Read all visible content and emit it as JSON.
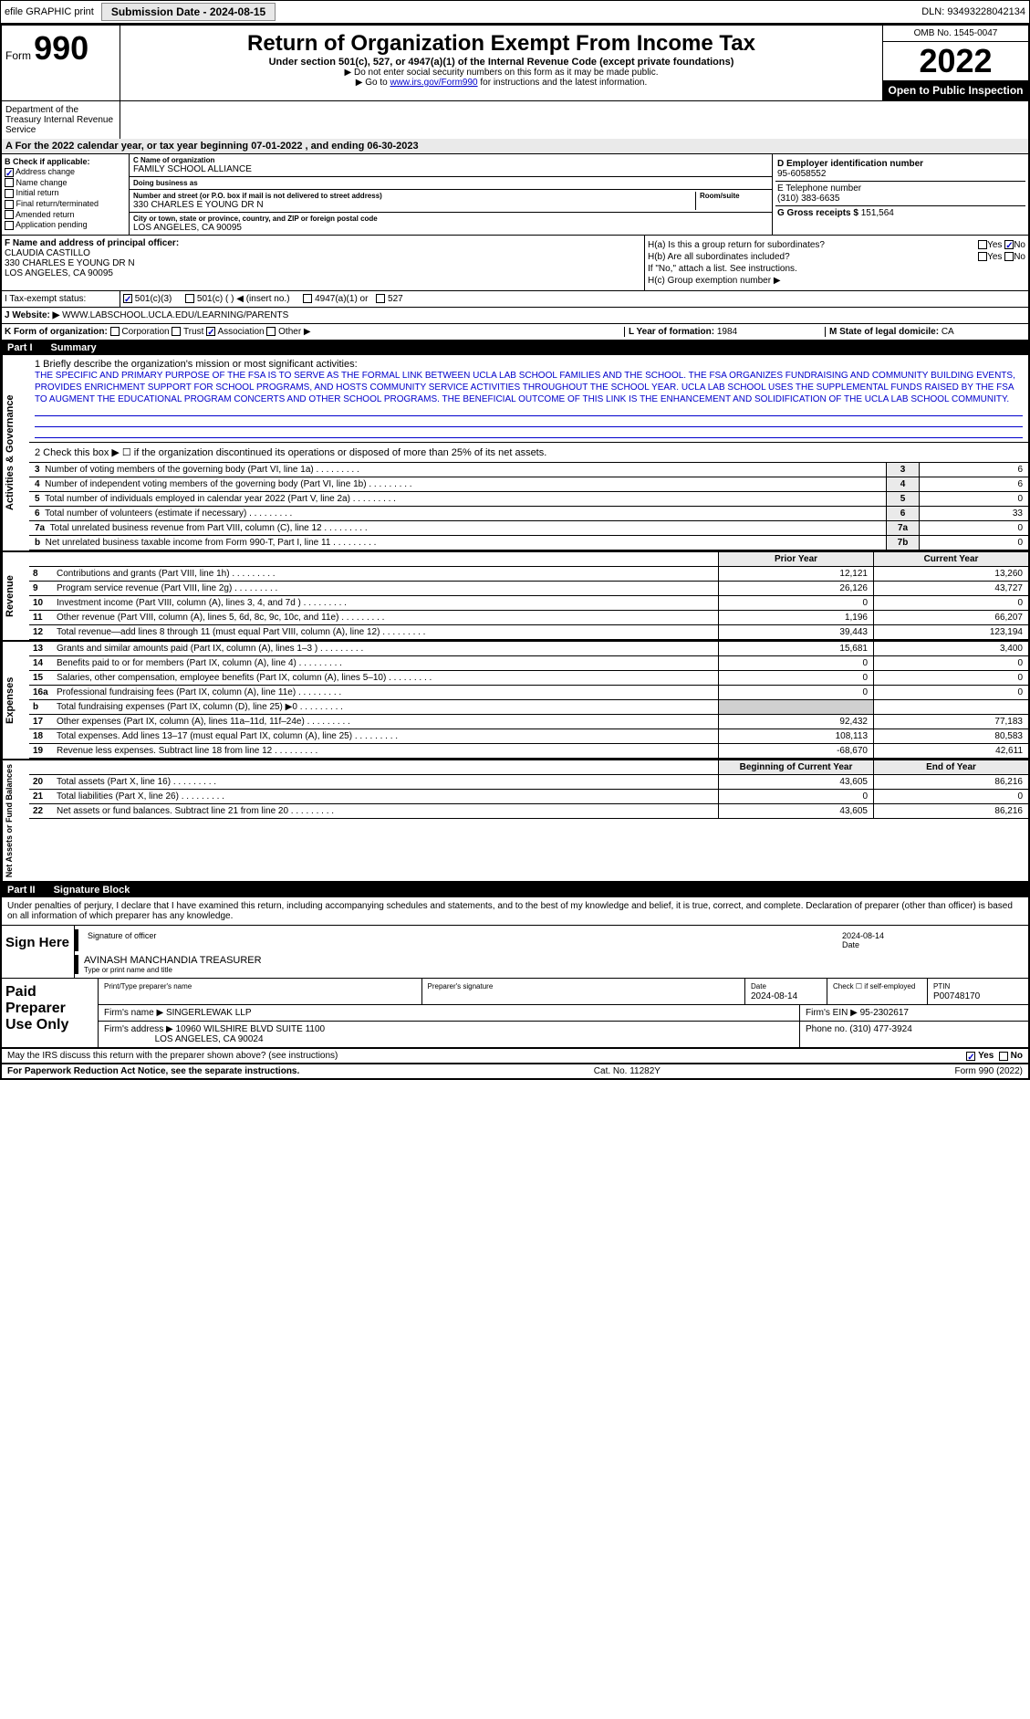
{
  "topbar": {
    "efile": "efile GRAPHIC print",
    "submission": "Submission Date - 2024-08-15",
    "dln": "DLN: 93493228042134"
  },
  "header": {
    "form_label": "Form",
    "form_number": "990",
    "title": "Return of Organization Exempt From Income Tax",
    "subtitle": "Under section 501(c), 527, or 4947(a)(1) of the Internal Revenue Code (except private foundations)",
    "note1": "▶ Do not enter social security numbers on this form as it may be made public.",
    "note2_pre": "▶ Go to ",
    "note2_link": "www.irs.gov/Form990",
    "note2_post": " for instructions and the latest information.",
    "omb": "OMB No. 1545-0047",
    "year": "2022",
    "inspect": "Open to Public Inspection",
    "dept": "Department of the Treasury Internal Revenue Service"
  },
  "period": "A For the 2022 calendar year, or tax year beginning 07-01-2022   , and ending 06-30-2023",
  "section_b": {
    "title": "B Check if applicable:",
    "items": [
      "Address change",
      "Name change",
      "Initial return",
      "Final return/terminated",
      "Amended return",
      "Application pending"
    ],
    "checked_index": 0
  },
  "section_c": {
    "name_label": "C Name of organization",
    "name": "FAMILY SCHOOL ALLIANCE",
    "dba_label": "Doing business as",
    "dba": "",
    "addr_label": "Number and street (or P.O. box if mail is not delivered to street address)",
    "room_label": "Room/suite",
    "addr": "330 CHARLES E YOUNG DR N",
    "city_label": "City or town, state or province, country, and ZIP or foreign postal code",
    "city": "LOS ANGELES, CA  90095"
  },
  "section_d": {
    "ein_label": "D Employer identification number",
    "ein": "95-6058552",
    "tel_label": "E Telephone number",
    "tel": "(310) 383-6635",
    "gross_label": "G Gross receipts $",
    "gross": "151,564"
  },
  "section_f": {
    "label": "F  Name and address of principal officer:",
    "name": "CLAUDIA CASTILLO",
    "addr1": "330 CHARLES E YOUNG DR N",
    "addr2": "LOS ANGELES, CA  90095"
  },
  "section_h": {
    "ha": "H(a)  Is this a group return for subordinates?",
    "ha_yes": "Yes",
    "ha_no": "No",
    "hb": "H(b)  Are all subordinates included?",
    "hb_note": "If \"No,\" attach a list. See instructions.",
    "hc": "H(c)  Group exemption number ▶"
  },
  "section_i": {
    "label": "I    Tax-exempt status:",
    "opts": [
      "501(c)(3)",
      "501(c) (  ) ◀ (insert no.)",
      "4947(a)(1) or",
      "527"
    ]
  },
  "section_j": {
    "label": "J   Website: ▶",
    "value": "WWW.LABSCHOOL.UCLA.EDU/LEARNING/PARENTS"
  },
  "section_k": {
    "label": "K Form of organization:",
    "opts": [
      "Corporation",
      "Trust",
      "Association",
      "Other ▶"
    ],
    "checked_index": 2,
    "l_label": "L Year of formation:",
    "l_val": "1984",
    "m_label": "M State of legal domicile:",
    "m_val": "CA"
  },
  "part1": {
    "header_part": "Part I",
    "header_title": "Summary",
    "mission_label": "1  Briefly describe the organization's mission or most significant activities:",
    "mission": "THE SPECIFIC AND PRIMARY PURPOSE OF THE FSA IS TO SERVE AS THE FORMAL LINK BETWEEN UCLA LAB SCHOOL FAMILIES AND THE SCHOOL. THE FSA ORGANIZES FUNDRAISING AND COMMUNITY BUILDING EVENTS, PROVIDES ENRICHMENT SUPPORT FOR SCHOOL PROGRAMS, AND HOSTS COMMUNITY SERVICE ACTIVITIES THROUGHOUT THE SCHOOL YEAR. UCLA LAB SCHOOL USES THE SUPPLEMENTAL FUNDS RAISED BY THE FSA TO AUGMENT THE EDUCATIONAL PROGRAM CONCERTS AND OTHER SCHOOL PROGRAMS. THE BENEFICIAL OUTCOME OF THIS LINK IS THE ENHANCEMENT AND SOLIDIFICATION OF THE UCLA LAB SCHOOL COMMUNITY.",
    "line2": "2   Check this box ▶ ☐  if the organization discontinued its operations or disposed of more than 25% of its net assets.",
    "gov_rows": [
      {
        "n": "3",
        "label": "Number of voting members of the governing body (Part VI, line 1a)",
        "box": "3",
        "val": "6"
      },
      {
        "n": "4",
        "label": "Number of independent voting members of the governing body (Part VI, line 1b)",
        "box": "4",
        "val": "6"
      },
      {
        "n": "5",
        "label": "Total number of individuals employed in calendar year 2022 (Part V, line 2a)",
        "box": "5",
        "val": "0"
      },
      {
        "n": "6",
        "label": "Total number of volunteers (estimate if necessary)",
        "box": "6",
        "val": "33"
      },
      {
        "n": "7a",
        "label": "Total unrelated business revenue from Part VIII, column (C), line 12",
        "box": "7a",
        "val": "0"
      },
      {
        "n": "b",
        "label": "Net unrelated business taxable income from Form 990-T, Part I, line 11",
        "box": "7b",
        "val": "0"
      }
    ],
    "fin_header_prior": "Prior Year",
    "fin_header_curr": "Current Year",
    "vtabs": [
      "Activities & Governance",
      "Revenue",
      "Expenses",
      "Net Assets or Fund Balances"
    ],
    "revenue": [
      {
        "n": "8",
        "txt": "Contributions and grants (Part VIII, line 1h)",
        "prior": "12,121",
        "curr": "13,260"
      },
      {
        "n": "9",
        "txt": "Program service revenue (Part VIII, line 2g)",
        "prior": "26,126",
        "curr": "43,727"
      },
      {
        "n": "10",
        "txt": "Investment income (Part VIII, column (A), lines 3, 4, and 7d )",
        "prior": "0",
        "curr": "0"
      },
      {
        "n": "11",
        "txt": "Other revenue (Part VIII, column (A), lines 5, 6d, 8c, 9c, 10c, and 11e)",
        "prior": "1,196",
        "curr": "66,207"
      },
      {
        "n": "12",
        "txt": "Total revenue—add lines 8 through 11 (must equal Part VIII, column (A), line 12)",
        "prior": "39,443",
        "curr": "123,194"
      }
    ],
    "expenses": [
      {
        "n": "13",
        "txt": "Grants and similar amounts paid (Part IX, column (A), lines 1–3 )",
        "prior": "15,681",
        "curr": "3,400"
      },
      {
        "n": "14",
        "txt": "Benefits paid to or for members (Part IX, column (A), line 4)",
        "prior": "0",
        "curr": "0"
      },
      {
        "n": "15",
        "txt": "Salaries, other compensation, employee benefits (Part IX, column (A), lines 5–10)",
        "prior": "0",
        "curr": "0"
      },
      {
        "n": "16a",
        "txt": "Professional fundraising fees (Part IX, column (A), line 11e)",
        "prior": "0",
        "curr": "0"
      },
      {
        "n": "b",
        "txt": "Total fundraising expenses (Part IX, column (D), line 25) ▶0",
        "prior": "",
        "curr": "",
        "shade": true
      },
      {
        "n": "17",
        "txt": "Other expenses (Part IX, column (A), lines 11a–11d, 11f–24e)",
        "prior": "92,432",
        "curr": "77,183"
      },
      {
        "n": "18",
        "txt": "Total expenses. Add lines 13–17 (must equal Part IX, column (A), line 25)",
        "prior": "108,113",
        "curr": "80,583"
      },
      {
        "n": "19",
        "txt": "Revenue less expenses. Subtract line 18 from line 12",
        "prior": "-68,670",
        "curr": "42,611"
      }
    ],
    "net_header_beg": "Beginning of Current Year",
    "net_header_end": "End of Year",
    "net": [
      {
        "n": "20",
        "txt": "Total assets (Part X, line 16)",
        "prior": "43,605",
        "curr": "86,216"
      },
      {
        "n": "21",
        "txt": "Total liabilities (Part X, line 26)",
        "prior": "0",
        "curr": "0"
      },
      {
        "n": "22",
        "txt": "Net assets or fund balances. Subtract line 21 from line 20",
        "prior": "43,605",
        "curr": "86,216"
      }
    ]
  },
  "part2": {
    "header_part": "Part II",
    "header_title": "Signature Block",
    "declaration": "Under penalties of perjury, I declare that I have examined this return, including accompanying schedules and statements, and to the best of my knowledge and belief, it is true, correct, and complete. Declaration of preparer (other than officer) is based on all information of which preparer has any knowledge.",
    "sign_here": "Sign Here",
    "sig_officer": "Signature of officer",
    "sig_date": "2024-08-14",
    "sig_date_label": "Date",
    "sig_name": "AVINASH MANCHANDIA TREASURER",
    "sig_name_label": "Type or print name and title",
    "paid": "Paid Preparer Use Only",
    "prep_name_label": "Print/Type preparer's name",
    "prep_sig_label": "Preparer's signature",
    "prep_date_label": "Date",
    "prep_date": "2024-08-14",
    "prep_check_label": "Check ☐ if self-employed",
    "ptin_label": "PTIN",
    "ptin": "P00748170",
    "firm_name_label": "Firm's name     ▶",
    "firm_name": "SINGERLEWAK LLP",
    "firm_ein_label": "Firm's EIN ▶",
    "firm_ein": "95-2302617",
    "firm_addr_label": "Firm's address ▶",
    "firm_addr1": "10960 WILSHIRE BLVD SUITE 1100",
    "firm_addr2": "LOS ANGELES, CA  90024",
    "phone_label": "Phone no.",
    "phone": "(310) 477-3924"
  },
  "footer": {
    "irs_discuss": "May the IRS discuss this return with the preparer shown above? (see instructions)",
    "yes": "Yes",
    "no": "No",
    "paperwork": "For Paperwork Reduction Act Notice, see the separate instructions.",
    "cat": "Cat. No. 11282Y",
    "form": "Form 990 (2022)"
  }
}
